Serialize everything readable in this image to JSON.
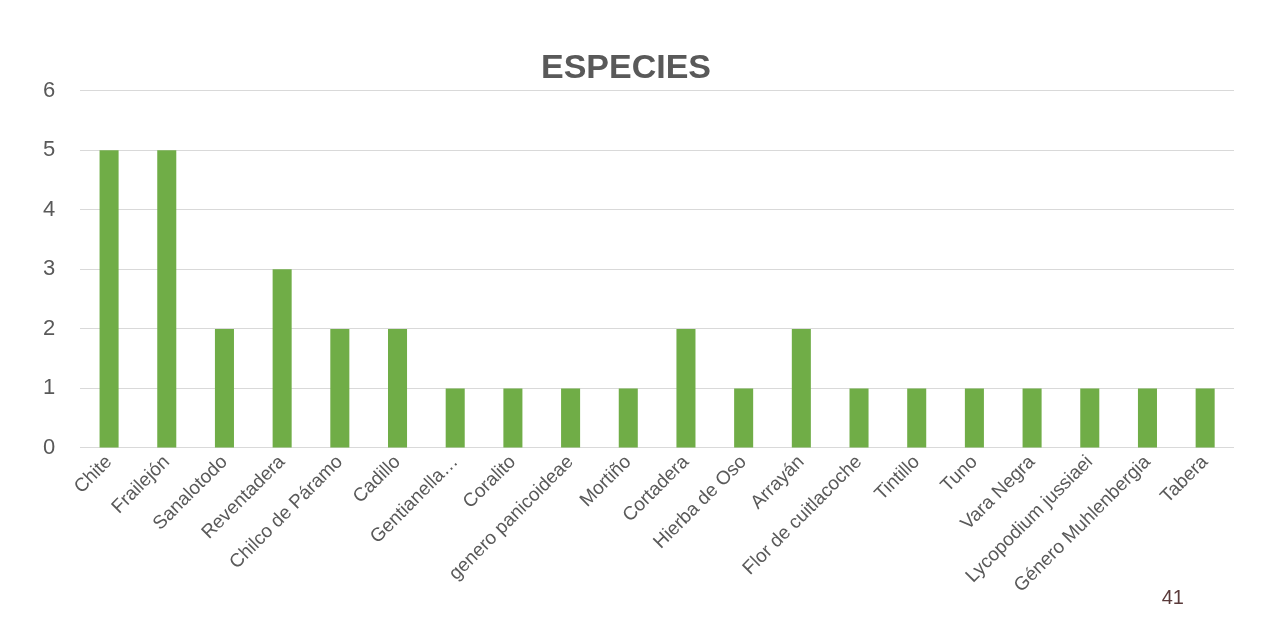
{
  "chart_data": {
    "type": "bar",
    "title": "ESPECIES",
    "categories": [
      "Chite",
      "Frailejón",
      "Sanalotodo",
      "Reventadera",
      "Chilco de Páramo",
      "Cadillo",
      "Gentianella…",
      "Coralito",
      "genero panicoideae",
      "Mortiño",
      "Cortadera",
      "Hierba de Oso",
      "Arrayán",
      "Flor de cuitlacoche",
      "Tintillo",
      "Tuno",
      "Vara Negra",
      "Lycopodium jussiaei",
      "Género Muhlenbergia",
      "Tabera"
    ],
    "values": [
      5,
      5,
      2,
      3,
      2,
      2,
      1,
      1,
      1,
      1,
      2,
      1,
      2,
      1,
      1,
      1,
      1,
      1,
      1,
      1
    ],
    "color": "#70ad47",
    "ylim": [
      0,
      6
    ],
    "yticks": [
      0,
      1,
      2,
      3,
      4,
      5,
      6
    ],
    "grid": "y",
    "legend": false,
    "annotations": [
      "41"
    ]
  }
}
